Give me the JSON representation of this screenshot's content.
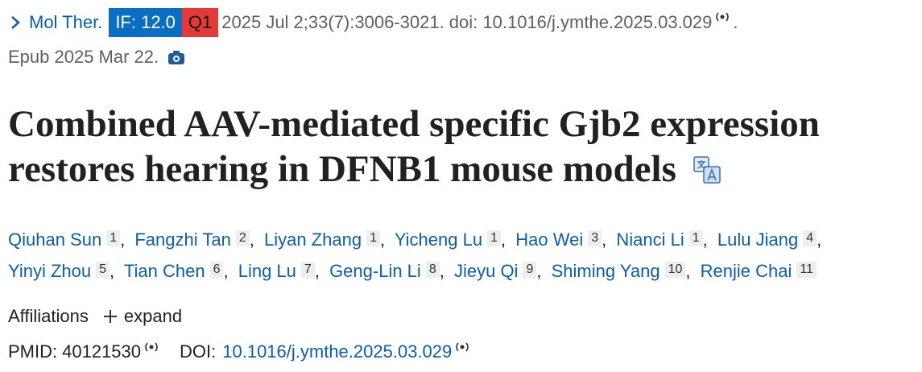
{
  "header": {
    "journal": "Mol Ther.",
    "impact_factor": "IF: 12.0",
    "quartile": "Q1",
    "citation": "2025 Jul 2;33(7):3006-3021. doi: 10.1016/j.ymthe.2025.03.029",
    "citation_end": ".",
    "epub": "Epub 2025 Mar 22."
  },
  "title": "Combined AAV-mediated specific Gjb2 expression restores hearing in DFNB1 mouse models",
  "authors": [
    {
      "name": "Qiuhan Sun",
      "aff": "1"
    },
    {
      "name": "Fangzhi Tan",
      "aff": "2"
    },
    {
      "name": "Liyan Zhang",
      "aff": "1"
    },
    {
      "name": "Yicheng Lu",
      "aff": "1"
    },
    {
      "name": "Hao Wei",
      "aff": "3"
    },
    {
      "name": "Nianci Li",
      "aff": "1"
    },
    {
      "name": "Lulu Jiang",
      "aff": "4"
    },
    {
      "name": "Yinyi Zhou",
      "aff": "5"
    },
    {
      "name": "Tian Chen",
      "aff": "6"
    },
    {
      "name": "Ling Lu",
      "aff": "7"
    },
    {
      "name": "Geng-Lin Li",
      "aff": "8"
    },
    {
      "name": "Jieyu Qi",
      "aff": "9"
    },
    {
      "name": "Shiming Yang",
      "aff": "10"
    },
    {
      "name": "Renjie Chai",
      "aff": "11"
    }
  ],
  "author_separator": ",",
  "affiliations": {
    "label": "Affiliations",
    "toggle": "expand"
  },
  "ids": {
    "pmid_label": "PMID:",
    "pmid": "40121530",
    "doi_label": "DOI:",
    "doi": "10.1016/j.ymthe.2025.03.029"
  }
}
